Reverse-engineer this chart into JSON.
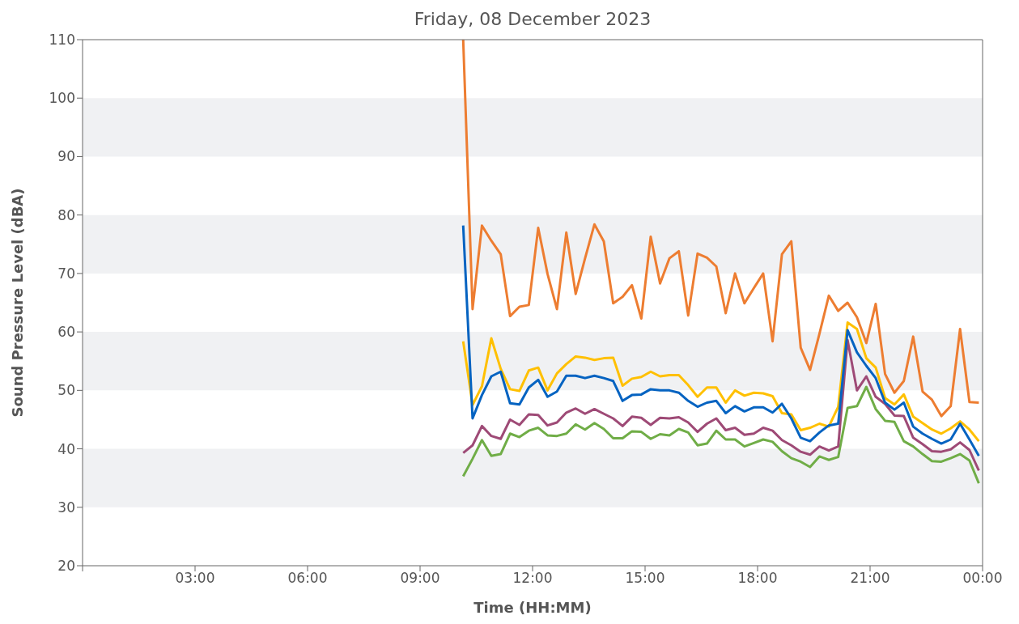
{
  "chart_data": {
    "type": "line",
    "title": "Friday, 08 December 2023",
    "xlabel": "Time (HH:MM)",
    "ylabel": "Sound Pressure Level (dBA)",
    "x": [
      10.15,
      10.4,
      10.65,
      10.9,
      11.15,
      11.4,
      11.65,
      11.9,
      12.15,
      12.4,
      12.65,
      12.9,
      13.15,
      13.4,
      13.65,
      13.9,
      14.15,
      14.4,
      14.65,
      14.9,
      15.15,
      15.4,
      15.65,
      15.9,
      16.15,
      16.4,
      16.65,
      16.9,
      17.15,
      17.4,
      17.65,
      17.9,
      18.15,
      18.4,
      18.65,
      18.9,
      19.15,
      19.4,
      19.65,
      19.9,
      20.15,
      20.4,
      20.65,
      20.9,
      21.15,
      21.4,
      21.65,
      21.9,
      22.15,
      22.4,
      22.65,
      22.9,
      23.15,
      23.4,
      23.65,
      23.9
    ],
    "series": [
      {
        "color": "#ffc000",
        "values": [
          58.4,
          47.5,
          50.7,
          58.9,
          53.7,
          50.2,
          49.9,
          53.4,
          53.9,
          50.0,
          52.9,
          54.5,
          55.8,
          55.6,
          55.2,
          55.5,
          55.6,
          50.8,
          52.0,
          52.3,
          53.2,
          52.4,
          52.6,
          52.6,
          50.9,
          48.9,
          50.5,
          50.5,
          47.9,
          50.0,
          49.1,
          49.6,
          49.5,
          49.0,
          46.1,
          45.9,
          43.2,
          43.6,
          44.3,
          43.8,
          47.2,
          61.6,
          60.5,
          55.5,
          53.9,
          48.7,
          47.6,
          49.3,
          45.5,
          44.4,
          43.3,
          42.6,
          43.5,
          44.7,
          43.3,
          41.3
        ]
      },
      {
        "color": "#70ad47",
        "values": [
          35.3,
          38.3,
          41.5,
          38.8,
          39.1,
          42.6,
          42.0,
          43.1,
          43.6,
          42.3,
          42.2,
          42.6,
          44.2,
          43.3,
          44.4,
          43.4,
          41.8,
          41.8,
          43.0,
          42.9,
          41.7,
          42.5,
          42.3,
          43.4,
          42.8,
          40.6,
          40.9,
          43.1,
          41.6,
          41.6,
          40.4,
          41.0,
          41.6,
          41.2,
          39.6,
          38.4,
          37.8,
          36.9,
          38.7,
          38.1,
          38.6,
          47.0,
          47.3,
          50.6,
          46.8,
          44.8,
          44.6,
          41.3,
          40.4,
          39.1,
          37.9,
          37.8,
          38.4,
          39.1,
          38.0,
          34.1
        ]
      },
      {
        "color": "#9e4a76",
        "values": [
          39.3,
          40.6,
          43.9,
          42.2,
          41.7,
          45.0,
          44.1,
          45.9,
          45.8,
          44.0,
          44.5,
          46.2,
          46.9,
          46.0,
          46.8,
          46.0,
          45.2,
          43.9,
          45.5,
          45.3,
          44.1,
          45.3,
          45.2,
          45.4,
          44.5,
          42.9,
          44.3,
          45.2,
          43.2,
          43.6,
          42.4,
          42.6,
          43.6,
          43.1,
          41.5,
          40.6,
          39.5,
          39.0,
          40.4,
          39.7,
          40.4,
          58.6,
          50.0,
          52.4,
          48.9,
          47.7,
          45.7,
          45.6,
          41.9,
          40.8,
          39.6,
          39.5,
          39.9,
          41.1,
          39.8,
          36.3
        ]
      },
      {
        "color": "#0563c1",
        "values": [
          78.2,
          45.2,
          49.2,
          52.4,
          53.2,
          47.8,
          47.6,
          50.5,
          51.8,
          48.9,
          49.8,
          52.5,
          52.5,
          52.1,
          52.5,
          52.1,
          51.6,
          48.2,
          49.2,
          49.3,
          50.2,
          50.0,
          50.0,
          49.6,
          48.2,
          47.2,
          47.9,
          48.2,
          46.1,
          47.3,
          46.4,
          47.1,
          47.1,
          46.2,
          47.7,
          45.2,
          41.9,
          41.3,
          42.8,
          44.0,
          44.3,
          60.3,
          56.5,
          54.2,
          52.1,
          47.9,
          46.7,
          47.9,
          43.8,
          42.6,
          41.7,
          40.9,
          41.6,
          44.3,
          41.6,
          38.8
        ]
      },
      {
        "color": "#ed7d31",
        "values": [
          110,
          63.9,
          78.2,
          75.6,
          73.3,
          62.7,
          64.3,
          64.6,
          77.8,
          69.9,
          63.9,
          77.0,
          66.5,
          72.6,
          78.4,
          75.5,
          64.9,
          66.0,
          68.0,
          62.3,
          76.3,
          68.3,
          72.6,
          73.8,
          62.8,
          73.4,
          72.7,
          71.2,
          63.2,
          70.0,
          64.9,
          67.5,
          70.0,
          58.4,
          73.3,
          75.5,
          57.3,
          53.5,
          59.7,
          66.2,
          63.6,
          65.0,
          62.5,
          58.1,
          64.8,
          52.8,
          49.6,
          51.6,
          59.2,
          49.8,
          48.4,
          45.6,
          47.3,
          60.5,
          48.0,
          47.9
        ]
      }
    ],
    "xlim": [
      0,
      24
    ],
    "xticks": [
      {
        "value": 0,
        "label": null
      },
      {
        "value": 3,
        "label": "03:00"
      },
      {
        "value": 6,
        "label": "06:00"
      },
      {
        "value": 9,
        "label": "09:00"
      },
      {
        "value": 12,
        "label": "12:00"
      },
      {
        "value": 15,
        "label": "15:00"
      },
      {
        "value": 18,
        "label": "18:00"
      },
      {
        "value": 21,
        "label": "21:00"
      },
      {
        "value": 24,
        "label": "00:00"
      }
    ],
    "ylim": [
      20,
      110
    ],
    "yticks": [
      20,
      30,
      40,
      50,
      60,
      70,
      80,
      90,
      100,
      110
    ],
    "bands": [
      {
        "axis": "y",
        "from": 30,
        "to": 40,
        "color": "#f0f1f3"
      },
      {
        "axis": "y",
        "from": 50,
        "to": 60,
        "color": "#f0f1f3"
      },
      {
        "axis": "y",
        "from": 70,
        "to": 80,
        "color": "#f0f1f3"
      },
      {
        "axis": "y",
        "from": 90,
        "to": 100,
        "color": "#f0f1f3"
      }
    ],
    "line_style": "solid"
  }
}
